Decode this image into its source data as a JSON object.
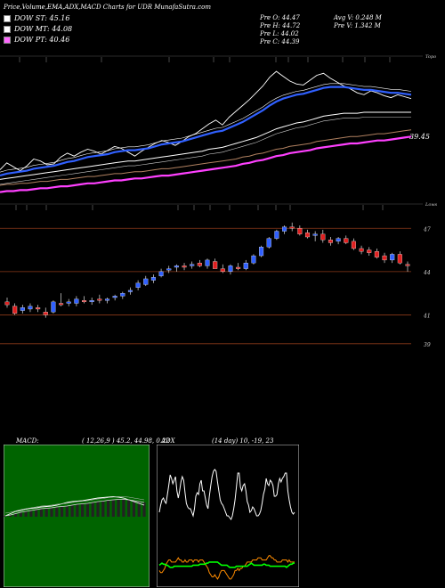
{
  "header": {
    "title": "Price,Volume,EMA,ADX,MACD Charts for UDR MunafaSutra.com"
  },
  "legend": [
    {
      "label": "DOW ST: 45.16",
      "color": "#ffffff"
    },
    {
      "label": "DOW MT: 44.08",
      "color": "#ffffff"
    },
    {
      "label": "DOW PT: 40.46",
      "color": "#ff66ff"
    }
  ],
  "ohlc": {
    "open": "Pre  O: 44.47",
    "high": "Pre  H: 44.72",
    "low": "Pre  L: 44.02",
    "close": "Pre  C: 44.39",
    "avg_vol": "Avg V: 0.248  M",
    "pre_vol": "Pre  V: 1.342  M"
  },
  "colors": {
    "price": "#ffffff",
    "ema_fast": "#3060ff",
    "ema_slow": "#ffffff",
    "ema_long": "#b08060",
    "dow_pt": "#ff40ff",
    "bull": "#3060ff",
    "bear": "#e02020",
    "grid_line": "#8b3a1a",
    "macd_bg": "#006400",
    "adx_pos": "#00ff00",
    "adx_neg": "#ff8c00"
  },
  "top_chart": {
    "right_label": "Topo",
    "level_label": "39.45"
  },
  "candle_chart": {
    "right_label": "Lows",
    "levels": [
      "47",
      "44",
      "41",
      "39"
    ]
  },
  "chart_data": [
    {
      "type": "line",
      "name": "price-ema",
      "series": [
        {
          "name": "",
          "values": [
            35.2,
            35.9,
            35.5,
            35.1,
            35.6,
            36.3,
            36.1,
            35.7,
            35.8,
            36.5,
            36.9,
            36.6,
            37.0,
            37.3,
            37.1,
            36.8,
            37.2,
            37.6,
            37.4,
            37.0,
            36.6,
            37.1,
            37.5,
            37.9,
            38.2,
            38.0,
            37.7,
            38.1,
            38.6,
            38.9,
            39.4,
            39.9,
            40.3,
            39.8,
            40.6,
            41.2,
            41.8,
            42.4,
            43.1,
            43.8,
            44.7,
            45.3,
            44.8,
            44.3,
            44.0,
            43.9,
            44.4,
            44.9,
            45.1,
            44.6,
            44.2,
            43.8,
            43.5,
            43.1,
            42.9,
            43.3,
            43.1,
            42.8,
            42.6,
            42.9,
            42.7,
            42.5
          ]
        },
        {
          "name": "",
          "values": [
            34.6,
            34.8,
            34.9,
            35.0,
            35.1,
            35.3,
            35.4,
            35.5,
            35.6,
            35.8,
            36.0,
            36.1,
            36.3,
            36.5,
            36.6,
            36.7,
            36.8,
            37.0,
            37.1,
            37.2,
            37.2,
            37.3,
            37.4,
            37.6,
            37.8,
            37.9,
            38.0,
            38.1,
            38.3,
            38.5,
            38.7,
            38.9,
            39.1,
            39.2,
            39.5,
            39.8,
            40.1,
            40.5,
            40.9,
            41.3,
            41.8,
            42.2,
            42.5,
            42.7,
            42.9,
            43.0,
            43.2,
            43.4,
            43.6,
            43.7,
            43.7,
            43.7,
            43.6,
            43.5,
            43.4,
            43.4,
            43.3,
            43.2,
            43.1,
            43.1,
            43.0,
            42.9
          ]
        },
        {
          "name": "",
          "values": [
            34.2,
            34.3,
            34.4,
            34.5,
            34.6,
            34.7,
            34.8,
            34.9,
            35.0,
            35.1,
            35.2,
            35.3,
            35.4,
            35.5,
            35.6,
            35.7,
            35.8,
            35.9,
            36.0,
            36.1,
            36.1,
            36.2,
            36.3,
            36.4,
            36.5,
            36.6,
            36.7,
            36.8,
            36.9,
            37.0,
            37.1,
            37.3,
            37.4,
            37.5,
            37.7,
            37.9,
            38.1,
            38.3,
            38.5,
            38.8,
            39.1,
            39.4,
            39.6,
            39.8,
            40.0,
            40.1,
            40.3,
            40.5,
            40.7,
            40.8,
            40.9,
            41.0,
            41.0,
            41.0,
            41.1,
            41.1,
            41.1,
            41.1,
            41.1,
            41.1,
            41.1,
            41.1
          ]
        },
        {
          "name": "",
          "values": [
            33.6,
            33.7,
            33.7,
            33.8,
            33.8,
            33.9,
            34.0,
            34.0,
            34.1,
            34.2,
            34.2,
            34.3,
            34.4,
            34.5,
            34.5,
            34.6,
            34.7,
            34.8,
            34.8,
            34.9,
            35.0,
            35.0,
            35.1,
            35.2,
            35.3,
            35.3,
            35.4,
            35.5,
            35.6,
            35.7,
            35.8,
            35.9,
            36.0,
            36.1,
            36.2,
            36.3,
            36.5,
            36.6,
            36.8,
            36.9,
            37.1,
            37.3,
            37.4,
            37.6,
            37.7,
            37.8,
            37.9,
            38.1,
            38.2,
            38.3,
            38.4,
            38.5,
            38.6,
            38.6,
            38.7,
            38.8,
            38.9,
            38.9,
            39.0,
            39.1,
            39.2,
            39.3
          ]
        }
      ]
    },
    {
      "type": "candlestick",
      "name": "price-candles",
      "ylim": [
        38,
        48.5
      ],
      "levels": [
        47,
        44,
        41,
        39
      ],
      "candles": [
        [
          41.9,
          42.2,
          41.5,
          41.7
        ],
        [
          41.6,
          41.8,
          41.0,
          41.1
        ],
        [
          41.3,
          41.7,
          41.1,
          41.5
        ],
        [
          41.4,
          41.8,
          41.2,
          41.6
        ],
        [
          41.5,
          41.7,
          41.2,
          41.4
        ],
        [
          41.2,
          41.5,
          40.8,
          41.0
        ],
        [
          41.2,
          42.0,
          41.1,
          41.9
        ],
        [
          41.8,
          42.5,
          41.6,
          41.7
        ],
        [
          41.8,
          42.1,
          41.6,
          41.9
        ],
        [
          41.8,
          42.3,
          41.6,
          42.1
        ],
        [
          42.0,
          42.3,
          41.8,
          41.9
        ],
        [
          41.9,
          42.2,
          41.7,
          42.0
        ],
        [
          42.1,
          42.4,
          41.8,
          42.0
        ],
        [
          42.0,
          42.2,
          41.8,
          42.1
        ],
        [
          42.2,
          42.4,
          42.0,
          42.3
        ],
        [
          42.3,
          42.6,
          42.1,
          42.5
        ],
        [
          42.6,
          42.9,
          42.4,
          42.7
        ],
        [
          42.9,
          43.4,
          42.7,
          43.2
        ],
        [
          43.1,
          43.7,
          43.0,
          43.5
        ],
        [
          43.4,
          43.8,
          43.2,
          43.6
        ],
        [
          43.7,
          44.2,
          43.6,
          44.0
        ],
        [
          44.1,
          44.4,
          43.9,
          44.2
        ],
        [
          44.3,
          44.5,
          44.0,
          44.4
        ],
        [
          44.4,
          44.6,
          44.1,
          44.3
        ],
        [
          44.4,
          44.7,
          44.2,
          44.5
        ],
        [
          44.6,
          44.8,
          44.3,
          44.4
        ],
        [
          44.4,
          44.9,
          44.2,
          44.8
        ],
        [
          44.7,
          44.9,
          44.3,
          44.2
        ],
        [
          44.2,
          44.5,
          43.9,
          44.0
        ],
        [
          44.0,
          44.5,
          43.8,
          44.4
        ],
        [
          44.3,
          44.6,
          44.1,
          44.2
        ],
        [
          44.2,
          44.8,
          44.1,
          44.6
        ],
        [
          44.6,
          45.2,
          44.5,
          45.1
        ],
        [
          45.1,
          45.8,
          45.0,
          45.7
        ],
        [
          45.7,
          46.4,
          45.6,
          46.3
        ],
        [
          46.3,
          46.9,
          46.2,
          46.8
        ],
        [
          46.8,
          47.2,
          46.6,
          47.1
        ],
        [
          47.1,
          47.4,
          46.8,
          47.0
        ],
        [
          47.0,
          47.2,
          46.5,
          46.6
        ],
        [
          46.7,
          46.9,
          46.3,
          46.4
        ],
        [
          46.5,
          46.8,
          46.1,
          46.6
        ],
        [
          46.6,
          46.9,
          46.0,
          46.2
        ],
        [
          46.2,
          46.4,
          45.8,
          46.0
        ],
        [
          46.1,
          46.4,
          45.9,
          46.3
        ],
        [
          46.3,
          46.5,
          45.9,
          46.0
        ],
        [
          46.1,
          46.3,
          45.5,
          45.6
        ],
        [
          45.6,
          45.8,
          45.2,
          45.4
        ],
        [
          45.5,
          45.7,
          45.1,
          45.3
        ],
        [
          45.4,
          45.6,
          44.9,
          45.0
        ],
        [
          45.1,
          45.3,
          44.6,
          44.8
        ],
        [
          44.8,
          45.3,
          44.6,
          45.2
        ],
        [
          45.2,
          45.4,
          44.5,
          44.6
        ],
        [
          44.5,
          44.7,
          44.0,
          44.4
        ]
      ]
    },
    {
      "type": "line",
      "name": "macd",
      "title": "MACD:",
      "params": "( 12,26,9 ) 45.2,  44.98,  0.22",
      "series": [
        {
          "name": "",
          "values": [
            0.0,
            0.05,
            0.1,
            0.12,
            0.15,
            0.17,
            0.18,
            0.2,
            0.21,
            0.22,
            0.24,
            0.27,
            0.3,
            0.32,
            0.33,
            0.34,
            0.36,
            0.38,
            0.4,
            0.41,
            0.42,
            0.43,
            0.42,
            0.4,
            0.36,
            0.32,
            0.28,
            0.24
          ]
        },
        {
          "name": "",
          "values": [
            0.0,
            0.02,
            0.05,
            0.08,
            0.1,
            0.12,
            0.14,
            0.16,
            0.17,
            0.18,
            0.2,
            0.21,
            0.22,
            0.24,
            0.26,
            0.27,
            0.28,
            0.3,
            0.32,
            0.33,
            0.35,
            0.36,
            0.37,
            0.37,
            0.36,
            0.34,
            0.32,
            0.3
          ]
        }
      ]
    },
    {
      "type": "line",
      "name": "adx",
      "title": "ADX",
      "params": "(14  day) 10,  -19,  23",
      "series": [
        {
          "name": "",
          "values": [
            12,
            16,
            19,
            20,
            18,
            17,
            22,
            27,
            33,
            31,
            28,
            30,
            32,
            24,
            20,
            24,
            29,
            32,
            30,
            23,
            17,
            15,
            14,
            14,
            12,
            10,
            14,
            21,
            23,
            22,
            28,
            30,
            24,
            24,
            20,
            16,
            14,
            21,
            27,
            32,
            35,
            36,
            35,
            29,
            24,
            19,
            17,
            16,
            14,
            12,
            10,
            10,
            9,
            8,
            10,
            14,
            19,
            26,
            34,
            34,
            26,
            24,
            27,
            28,
            24,
            18,
            16,
            12,
            13,
            15,
            14,
            12,
            10,
            10,
            11,
            13,
            17,
            22,
            25,
            31,
            28,
            27,
            30,
            29,
            27,
            21,
            21,
            22,
            28,
            31,
            29,
            31,
            32,
            34,
            34,
            24,
            19,
            15,
            12,
            11,
            12
          ]
        },
        {
          "name": "",
          "values": [
            15,
            14,
            14,
            15,
            16,
            18,
            19,
            20,
            20,
            19,
            19,
            19,
            19,
            20,
            21,
            20,
            20,
            19,
            19,
            20,
            19,
            19,
            20,
            20,
            20,
            19,
            20,
            20,
            20,
            19,
            20,
            20,
            20,
            19,
            18,
            17,
            16,
            14,
            13,
            12,
            12,
            13,
            12,
            11,
            12,
            14,
            15,
            15,
            15,
            14,
            13,
            12,
            11,
            11,
            12,
            13,
            15,
            15,
            16,
            15,
            16,
            16,
            17,
            17,
            18,
            19,
            19,
            19,
            19,
            20,
            20,
            20,
            20,
            21,
            21,
            21,
            20,
            20,
            20,
            20,
            21,
            22,
            22,
            21,
            21,
            20,
            20,
            19,
            19,
            19,
            19,
            20,
            20,
            20,
            20,
            19,
            20,
            19,
            19,
            19,
            19
          ]
        },
        {
          "name": "",
          "values": [
            27,
            28,
            29,
            28,
            28,
            27,
            27,
            26,
            25,
            25,
            25,
            26,
            26,
            26,
            26,
            26,
            26,
            26,
            26,
            26,
            26,
            26,
            26,
            26,
            26,
            27,
            27,
            27,
            27,
            27,
            28,
            28,
            28,
            28,
            28,
            29,
            29,
            30,
            30,
            30,
            30,
            30,
            30,
            30,
            29,
            28,
            27,
            27,
            27,
            27,
            27,
            26,
            25,
            25,
            25,
            25,
            25,
            26,
            26,
            26,
            26,
            26,
            26,
            26,
            26,
            26,
            27,
            28,
            29,
            28,
            27,
            27,
            27,
            27,
            27,
            27,
            27,
            28,
            28,
            27,
            27,
            27,
            26,
            26,
            26,
            26,
            26,
            26,
            26,
            26,
            26,
            26,
            26,
            26,
            25,
            26,
            27,
            28,
            28,
            29,
            29
          ]
        }
      ]
    }
  ]
}
